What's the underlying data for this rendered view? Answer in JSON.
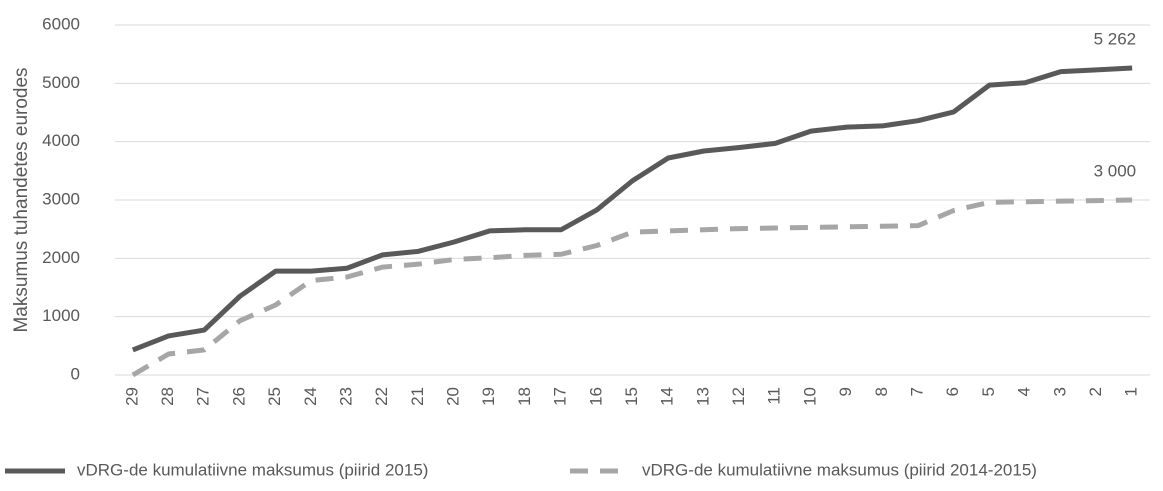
{
  "chart_data": {
    "type": "line",
    "y_label": "Maksumus tuhandetes eurodes",
    "categories": [
      "29",
      "28",
      "27",
      "26",
      "25",
      "24",
      "23",
      "22",
      "21",
      "20",
      "19",
      "18",
      "17",
      "16",
      "15",
      "14",
      "13",
      "12",
      "11",
      "10",
      "9",
      "8",
      "7",
      "6",
      "5",
      "4",
      "3",
      "2",
      "1"
    ],
    "series": [
      {
        "name": "vDRG-de kumulatiivne maksumus (piirid 2015)",
        "color": "#595959",
        "dash": false,
        "values": [
          430,
          670,
          770,
          1350,
          1780,
          1780,
          1830,
          2060,
          2120,
          2280,
          2470,
          2490,
          2490,
          2830,
          3330,
          3720,
          3840,
          3900,
          3970,
          4180,
          4250,
          4270,
          4360,
          4510,
          4970,
          5010,
          5200,
          5230,
          5262
        ],
        "value_labels": [
          null,
          null,
          null,
          null,
          null,
          null,
          null,
          null,
          null,
          null,
          null,
          null,
          null,
          null,
          null,
          null,
          null,
          null,
          null,
          null,
          null,
          null,
          null,
          null,
          null,
          null,
          null,
          null,
          "5 262"
        ]
      },
      {
        "name": "vDRG-de kumulatiivne maksumus (piirid 2014-2015)",
        "color": "#a6a6a6",
        "dash": true,
        "values": [
          0,
          360,
          430,
          930,
          1200,
          1620,
          1680,
          1850,
          1900,
          1980,
          2010,
          2050,
          2070,
          2220,
          2450,
          2470,
          2490,
          2510,
          2520,
          2530,
          2540,
          2550,
          2560,
          2820,
          2960,
          2970,
          2980,
          2990,
          3000
        ],
        "value_labels": [
          null,
          null,
          null,
          null,
          null,
          null,
          null,
          null,
          null,
          null,
          null,
          null,
          null,
          null,
          null,
          null,
          null,
          null,
          null,
          null,
          null,
          null,
          null,
          null,
          null,
          null,
          null,
          null,
          "3 000"
        ]
      }
    ],
    "ylim": [
      0,
      6000
    ],
    "yticks": [
      0,
      1000,
      2000,
      3000,
      4000,
      5000,
      6000
    ],
    "grid": true,
    "legend": "bottom"
  }
}
